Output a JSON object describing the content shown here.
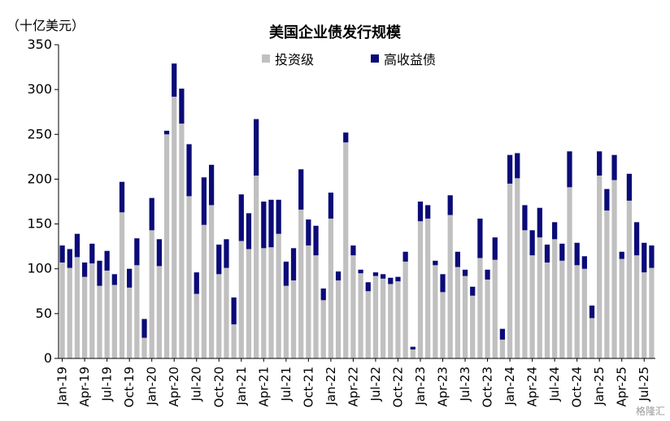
{
  "unit_label": "（十亿美元）",
  "watermark": "格隆汇",
  "chart_data": {
    "type": "bar",
    "stacked": true,
    "title": "美国企业债发行规模",
    "xlabel": "",
    "ylabel": "",
    "ylim": [
      0,
      350
    ],
    "yticks": [
      0,
      50,
      100,
      150,
      200,
      250,
      300,
      350
    ],
    "grid": false,
    "legend_position": "top-center",
    "categories": [
      "Jan-19",
      "Feb-19",
      "Mar-19",
      "Apr-19",
      "May-19",
      "Jun-19",
      "Jul-19",
      "Aug-19",
      "Sep-19",
      "Oct-19",
      "Nov-19",
      "Dec-19",
      "Jan-20",
      "Feb-20",
      "Mar-20",
      "Apr-20",
      "May-20",
      "Jun-20",
      "Jul-20",
      "Aug-20",
      "Sep-20",
      "Oct-20",
      "Nov-20",
      "Dec-20",
      "Jan-21",
      "Feb-21",
      "Mar-21",
      "Apr-21",
      "May-21",
      "Jun-21",
      "Jul-21",
      "Aug-21",
      "Sep-21",
      "Oct-21",
      "Nov-21",
      "Dec-21",
      "Jan-22",
      "Feb-22",
      "Mar-22",
      "Apr-22",
      "May-22",
      "Jun-22",
      "Jul-22",
      "Aug-22",
      "Sep-22",
      "Oct-22",
      "Nov-22",
      "Dec-22",
      "Jan-23",
      "Feb-23",
      "Mar-23",
      "Apr-23",
      "May-23",
      "Jun-23",
      "Jul-23",
      "Aug-23",
      "Sep-23",
      "Oct-23",
      "Nov-23",
      "Dec-23",
      "Jan-24",
      "Feb-24",
      "Mar-24",
      "Apr-24",
      "May-24",
      "Jun-24",
      "Jul-24",
      "Aug-24",
      "Sep-24",
      "Oct-24",
      "Nov-24",
      "Dec-24",
      "Jan-25",
      "Feb-25",
      "Mar-25",
      "Apr-25",
      "May-25",
      "Jun-25",
      "Jul-25",
      "Aug-25"
    ],
    "tick_labels": [
      {
        "index": 0,
        "label": "Jan-19"
      },
      {
        "index": 3,
        "label": "Apr-19"
      },
      {
        "index": 6,
        "label": "Jul-19"
      },
      {
        "index": 9,
        "label": "Oct-19"
      },
      {
        "index": 12,
        "label": "Jan-20"
      },
      {
        "index": 15,
        "label": "Apr-20"
      },
      {
        "index": 18,
        "label": "Jul-20"
      },
      {
        "index": 21,
        "label": "Oct-20"
      },
      {
        "index": 24,
        "label": "Jan-21"
      },
      {
        "index": 27,
        "label": "Apr-21"
      },
      {
        "index": 30,
        "label": "Jul-21"
      },
      {
        "index": 33,
        "label": "Oct-21"
      },
      {
        "index": 36,
        "label": "Jan-22"
      },
      {
        "index": 39,
        "label": "Apr-22"
      },
      {
        "index": 42,
        "label": "Jul-22"
      },
      {
        "index": 45,
        "label": "Oct-22"
      },
      {
        "index": 48,
        "label": "Jan-23"
      },
      {
        "index": 51,
        "label": "Apr-23"
      },
      {
        "index": 54,
        "label": "Jul-23"
      },
      {
        "index": 57,
        "label": "Oct-23"
      },
      {
        "index": 60,
        "label": "Jan-24"
      },
      {
        "index": 63,
        "label": "Apr-24"
      },
      {
        "index": 66,
        "label": "Jul-24"
      },
      {
        "index": 69,
        "label": "Oct-24"
      },
      {
        "index": 72,
        "label": "Jan-25"
      },
      {
        "index": 75,
        "label": "Apr-25"
      },
      {
        "index": 78,
        "label": "Jul-25"
      }
    ],
    "series": [
      {
        "name": "投资级",
        "color": "#c0c0c0",
        "values": [
          107,
          101,
          113,
          91,
          106,
          81,
          98,
          82,
          163,
          79,
          104,
          23,
          143,
          103,
          250,
          292,
          262,
          181,
          72,
          149,
          171,
          94,
          101,
          38,
          131,
          122,
          204,
          123,
          124,
          139,
          81,
          87,
          166,
          126,
          115,
          65,
          156,
          87,
          241,
          115,
          95,
          75,
          92,
          89,
          83,
          86,
          108,
          10,
          153,
          156,
          104,
          74,
          160,
          102,
          92,
          70,
          112,
          88,
          110,
          21,
          195,
          201,
          143,
          115,
          135,
          107,
          133,
          109,
          191,
          104,
          100,
          45,
          204,
          165,
          199,
          111,
          176,
          115,
          96,
          101
        ]
      },
      {
        "name": "高收益债",
        "color": "#0b0b78",
        "values": [
          19,
          21,
          26,
          16,
          22,
          28,
          22,
          12,
          34,
          21,
          30,
          21,
          36,
          30,
          4,
          37,
          39,
          58,
          24,
          53,
          45,
          33,
          32,
          30,
          52,
          40,
          63,
          52,
          53,
          38,
          27,
          36,
          45,
          29,
          33,
          13,
          29,
          10,
          11,
          11,
          4,
          10,
          4,
          5,
          7,
          5,
          11,
          3,
          22,
          15,
          5,
          20,
          22,
          17,
          7,
          10,
          44,
          11,
          25,
          12,
          32,
          28,
          28,
          28,
          33,
          20,
          19,
          19,
          40,
          25,
          14,
          14,
          27,
          24,
          28,
          8,
          30,
          37,
          33,
          25
        ]
      }
    ]
  }
}
